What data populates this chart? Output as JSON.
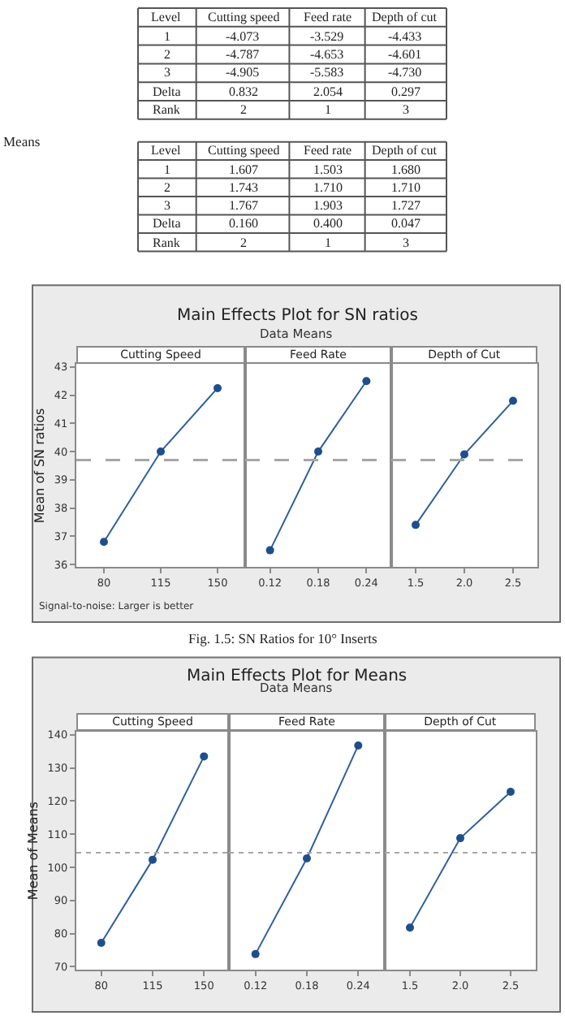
{
  "chart_data": [
    {
      "type": "other",
      "categories": [
        "Level",
        "Cutting speed",
        "Feed rate",
        "Depth of cut"
      ],
      "cell_labels": [
        [
          "1",
          "-4.073",
          "-3.529",
          "-4.433"
        ],
        [
          "2",
          "-4.787",
          "-4.653",
          "-4.601"
        ],
        [
          "3",
          "-4.905",
          "-5.583",
          "-4.730"
        ],
        [
          "Delta",
          "0.832",
          "2.054",
          "0.297"
        ],
        [
          "Rank",
          "2",
          "1",
          "3"
        ]
      ]
    },
    {
      "type": "other",
      "annotations": [
        "Means"
      ],
      "categories": [
        "Level",
        "Cutting speed",
        "Feed rate",
        "Depth of cut"
      ],
      "cell_labels": [
        [
          "1",
          "1.607",
          "1.503",
          "1.680"
        ],
        [
          "2",
          "1.743",
          "1.710",
          "1.710"
        ],
        [
          "3",
          "1.767",
          "1.903",
          "1.727"
        ],
        [
          "Delta",
          "0.160",
          "0.400",
          "0.047"
        ],
        [
          "Rank",
          "2",
          "1",
          "3"
        ]
      ]
    },
    {
      "type": "other",
      "title": "Main Effects Plot for SN ratios",
      "subtitle": "Data Means"
    },
    {
      "type": "line",
      "title": "Cutting Speed",
      "ylabel": "Mean of SN ratios",
      "annotations": [
        "Signal-to-noise: Larger is better"
      ],
      "x": [
        80,
        115,
        150
      ],
      "values": [
        36.8,
        40.0,
        42.25
      ],
      "color": "#2e5f9e",
      "marker": "circle",
      "xlim": [
        63,
        167
      ],
      "xticks": [
        80,
        115,
        150
      ],
      "ylim": [
        35.9,
        43.1
      ],
      "yticks": [
        36,
        37,
        38,
        39,
        40,
        41,
        42,
        43
      ],
      "ref_lines": [
        {
          "axis": "y",
          "value": 39.7,
          "color": "#a6a6a6",
          "line_style": "dashed"
        }
      ]
    },
    {
      "type": "line",
      "title": "Feed Rate",
      "tick_labels": "x",
      "x": [
        0.12,
        0.18,
        0.24
      ],
      "values": [
        36.5,
        40.0,
        42.5
      ],
      "color": "#2e5f9e",
      "marker": "circle",
      "xlim": [
        0.089,
        0.271
      ],
      "xticks": [
        0.12,
        0.18,
        0.24
      ],
      "ylim": [
        35.9,
        43.1
      ],
      "ref_lines": [
        {
          "axis": "y",
          "value": 39.7,
          "color": "#a6a6a6",
          "line_style": "dashed"
        }
      ]
    },
    {
      "type": "line",
      "title": "Depth of Cut",
      "tick_labels": "x",
      "x": [
        1.5,
        2.0,
        2.5
      ],
      "values": [
        37.4,
        39.9,
        41.8
      ],
      "color": "#2e5f9e",
      "marker": "circle",
      "xlim": [
        1.25,
        2.75
      ],
      "xticks": [
        {
          "value": 1.5,
          "label": "1.5"
        },
        {
          "value": 2.0,
          "label": "2.0"
        },
        {
          "value": 2.5,
          "label": "2.5"
        }
      ],
      "ylim": [
        35.9,
        43.1
      ],
      "ref_lines": [
        {
          "axis": "y",
          "value": 39.7,
          "color": "#a6a6a6",
          "line_style": "dashed"
        }
      ]
    },
    {
      "type": "other",
      "annotations": [
        "Fig. 1.5: SN Ratios for 10° Inserts"
      ]
    },
    {
      "type": "other",
      "title": "Main Effects Plot for Means",
      "subtitle": "Data Means"
    },
    {
      "type": "line",
      "title": "Cutting Speed",
      "ylabel": "Mean of Means",
      "x": [
        80,
        115,
        150
      ],
      "values": [
        77.2,
        102.3,
        133.5
      ],
      "color": "#2e5f9e",
      "marker": "circle",
      "xlim": [
        63,
        167
      ],
      "xticks": [
        80,
        115,
        150
      ],
      "ylim": [
        69,
        141
      ],
      "yticks": [
        70,
        80,
        90,
        100,
        110,
        120,
        130,
        140
      ],
      "ref_lines": [
        {
          "axis": "y",
          "value": 104.4,
          "color": "#a6a6a6",
          "line_style": "dotted"
        }
      ]
    },
    {
      "type": "line",
      "title": "Feed Rate",
      "tick_labels": "x",
      "x": [
        0.12,
        0.18,
        0.24
      ],
      "values": [
        73.8,
        102.7,
        136.8
      ],
      "color": "#2e5f9e",
      "marker": "circle",
      "xlim": [
        0.089,
        0.271
      ],
      "xticks": [
        0.12,
        0.18,
        0.24
      ],
      "ylim": [
        69,
        141
      ],
      "ref_lines": [
        {
          "axis": "y",
          "value": 104.4,
          "color": "#a6a6a6",
          "line_style": "dotted"
        }
      ]
    },
    {
      "type": "line",
      "title": "Depth of Cut",
      "tick_labels": "x",
      "x": [
        1.5,
        2.0,
        2.5
      ],
      "values": [
        81.8,
        108.8,
        122.8
      ],
      "color": "#2e5f9e",
      "marker": "circle",
      "xlim": [
        1.25,
        2.75
      ],
      "xticks": [
        {
          "value": 1.5,
          "label": "1.5"
        },
        {
          "value": 2.0,
          "label": "2.0"
        },
        {
          "value": 2.5,
          "label": "2.5"
        }
      ],
      "ylim": [
        69,
        141
      ],
      "ref_lines": [
        {
          "axis": "y",
          "value": 104.4,
          "color": "#a6a6a6",
          "line_style": "dotted"
        }
      ]
    }
  ]
}
